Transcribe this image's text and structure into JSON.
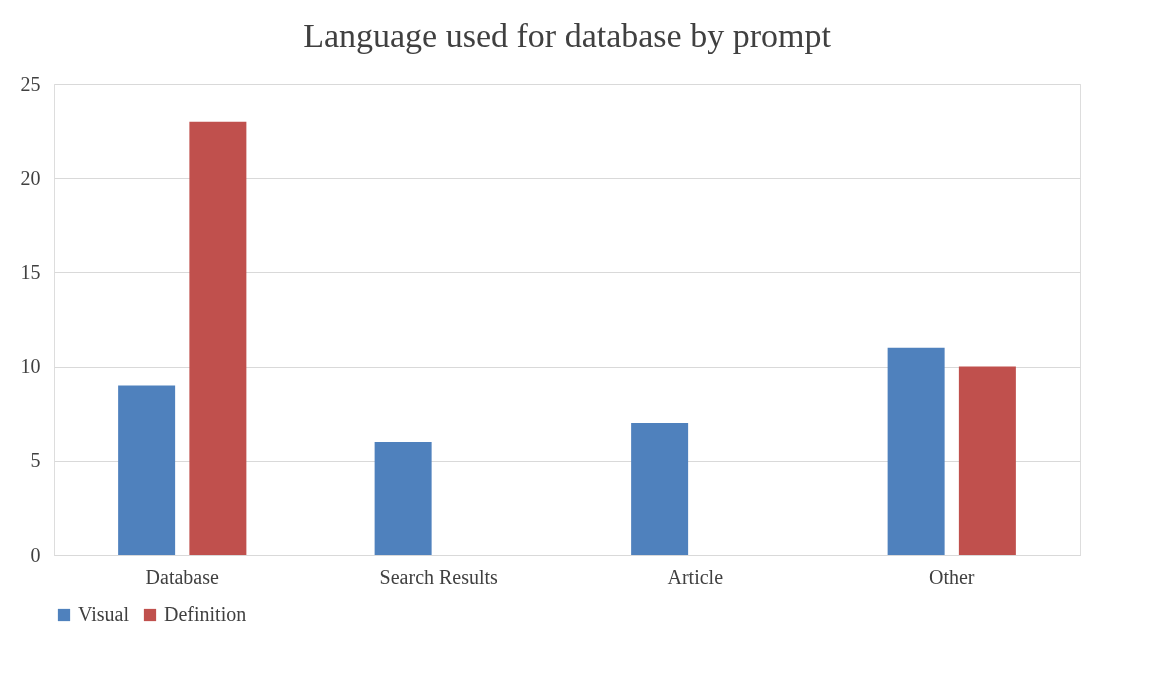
{
  "chart_data": {
    "type": "bar",
    "title": "Language used for database by prompt",
    "categories": [
      "Database",
      "Search Results",
      "Article",
      "Other"
    ],
    "series": [
      {
        "name": "Visual",
        "color": "#4f81bd",
        "values": [
          9,
          6,
          7,
          11
        ]
      },
      {
        "name": "Definition",
        "color": "#c0504d",
        "values": [
          23,
          0,
          0,
          10
        ]
      }
    ],
    "ylim": [
      0,
      25
    ],
    "yticks": [
      0,
      5,
      10,
      15,
      20,
      25
    ],
    "grid": "y",
    "legend": "bottom"
  }
}
